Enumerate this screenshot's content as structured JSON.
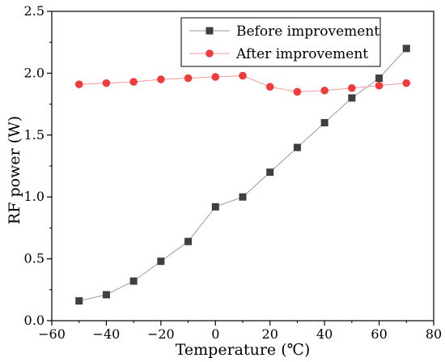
{
  "chart_data": {
    "type": "line",
    "title": "",
    "xlabel": "Temperature (℃)",
    "ylabel": "RF power (W)",
    "xlim": [
      -60,
      80
    ],
    "ylim": [
      0.0,
      2.5
    ],
    "x_ticks": [
      -60,
      -40,
      -20,
      0,
      20,
      40,
      60,
      80
    ],
    "y_ticks": [
      "0.0",
      "0.5",
      "1.0",
      "1.5",
      "2.0",
      "2.5"
    ],
    "grid": false,
    "legend_position": "top-center",
    "x": [
      -50,
      -40,
      -30,
      -20,
      -10,
      0,
      10,
      20,
      30,
      40,
      50,
      60,
      70
    ],
    "series": [
      {
        "name": "Before improvement",
        "marker": "square",
        "color": "#3f3f3f",
        "line_color": "#9a9a9a",
        "values": [
          0.16,
          0.21,
          0.32,
          0.48,
          0.64,
          0.92,
          1.0,
          1.2,
          1.4,
          1.6,
          1.8,
          1.96,
          2.2
        ]
      },
      {
        "name": "After improvement",
        "marker": "circle",
        "color": "#f03c3c",
        "line_color": "#f29a9a",
        "values": [
          1.91,
          1.92,
          1.93,
          1.95,
          1.96,
          1.97,
          1.98,
          1.89,
          1.85,
          1.86,
          1.88,
          1.9,
          1.92
        ]
      }
    ]
  }
}
